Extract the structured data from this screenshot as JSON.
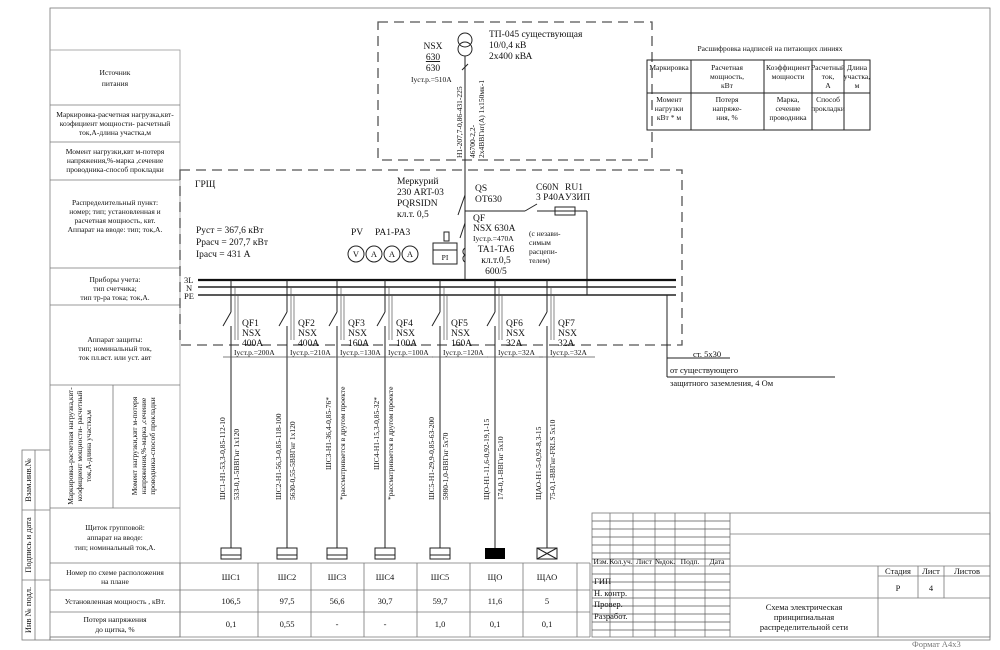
{
  "left_table": {
    "source": [
      "Источник",
      "питания"
    ],
    "marking": [
      "Маркировка-расчетная нагрузка,квт-",
      "коэфициент мощности- расчетный",
      "ток,А-длина участка,м"
    ],
    "moment": [
      "Момент нагрузки,квт м-потеря",
      "напряжения,%-марка ,сечение",
      "проводника-способ прокладки"
    ],
    "dist_point": [
      "Распределительный пункт:",
      "номер; тип; установленная и",
      "расчетная мощность, квт.",
      "Аппарат на вводе: тип; ток,А."
    ],
    "meters": [
      "Приборы учета:",
      "тип счетчика;",
      "тип тр-ра тока; ток,А."
    ],
    "protection": [
      "Аппарат защиты:",
      "тип; номинальный ток,",
      "ток пл.вст. или уст. авт"
    ],
    "marking_v": [
      "Маркировка-расчетная нагрузка,квт-",
      "коэфициент мощности- расчетный",
      "ток,А-длина участка,м"
    ],
    "moment_v": [
      "Момент нагрузки,квт м-потеря",
      "напряжения,%-марка ,сечение",
      "проводника-способ прокладки"
    ],
    "group_panel": [
      "Щиток групповой:",
      "аппарат на вводе:",
      "тип; номинальный ток,А."
    ],
    "plan_number": [
      "Номер по схеме расположения",
      "на плане"
    ],
    "installed_power": "Установленная мощность , кВт.",
    "voltage_loss": [
      "Потеря напряжения",
      "до щитка, %"
    ]
  },
  "stamps": [
    "Инв № подл.",
    "Подпись и дата",
    "Взам.инв.№"
  ],
  "transformer": {
    "name": "ТП-045 существующая",
    "voltage": "10/0,4 кВ",
    "power": "2х400 кВА",
    "breaker": [
      "NSX",
      "630",
      "630",
      "Iуст.р.=510А"
    ],
    "cable": [
      "Н1-207,7-0,86-431-225",
      "46700-2,2-",
      "2х4ВВГнг(А) 1х150мк-1"
    ]
  },
  "legend": {
    "title": "Расшифровка надписей на питающих линиях",
    "row1": [
      [
        "Маркировка"
      ],
      [
        "Расчетная",
        "мощность,",
        "кВт"
      ],
      [
        "Коэффициент",
        "мощности"
      ],
      [
        "Расчетный",
        "ток,",
        "А"
      ],
      [
        "Длина",
        "участка,",
        "м"
      ]
    ],
    "row2": [
      [
        "Момент",
        "нагрузки",
        "кВт * м"
      ],
      [
        "Потеря",
        "напряже-",
        "ния,   %"
      ],
      [
        "Марка,",
        "сечение",
        "проводника"
      ],
      [
        "Способ",
        "прокладки"
      ],
      []
    ]
  },
  "panel": {
    "name": "ГРЩ",
    "p_inst": "Руст = 367,6 кВт",
    "p_calc": "Ррасч = 207,7 кВт",
    "i_calc": "Ірасч = 431 А",
    "meter": [
      "Меркурий",
      "230 ART-03",
      "PQRSIDN",
      "кл.т. 0,5"
    ],
    "pv": "PV",
    "pa": "PA1-PA3",
    "instruments": [
      "V",
      "A",
      "A",
      "A"
    ],
    "pi": "PI",
    "qs": [
      "QS",
      "OT630"
    ],
    "qf": [
      "QF",
      "NSX 630A",
      "Iуст.р.=470А"
    ],
    "ta": [
      "TA1-TA6",
      "кл.т.0,5",
      "600/5"
    ],
    "note": [
      "(с незави-",
      "симым",
      "расцепи-",
      "телем)"
    ],
    "c60": [
      "C60N",
      "3 P40A"
    ],
    "ru": [
      "RU1",
      "УЗИП"
    ],
    "bus_labels": [
      "3L",
      "N",
      "PE"
    ]
  },
  "grounding": [
    "ст. 5х30",
    "от существующего",
    "защитного заземления, 4 Ом"
  ],
  "feeders": [
    {
      "qf": "QF1",
      "type": "NSX",
      "rating": "400А",
      "setting": "Iуст.р.=200А",
      "line1": "ШС1-Н1-53,3-0,85-112-10",
      "line2": "533-0,1-5ВВГнг 1х120",
      "panel": "ШС1",
      "power": "106,5",
      "loss": "0,1",
      "symbol": "panel"
    },
    {
      "qf": "QF2",
      "type": "NSX",
      "rating": "400А",
      "setting": "Iуст.р.=210А",
      "line1": "ШС2-Н1-56,3-0,85-118-100",
      "line2": "5630-0,55-5ВВГнг 1х120",
      "panel": "ШС2",
      "power": "97,5",
      "loss": "0,55",
      "symbol": "panel"
    },
    {
      "qf": "QF3",
      "type": "NSX",
      "rating": "160А",
      "setting": "Iуст.р.=130А",
      "line1": "ШС3-Н1-36,4-0,85-76*",
      "line2": "*рассматривается в другом проекте",
      "panel": "ШС3",
      "power": "56,6",
      "loss": "-",
      "symbol": "panel"
    },
    {
      "qf": "QF4",
      "type": "NSX",
      "rating": "100А",
      "setting": "Iуст.р.=100А",
      "line1": "ШС4-Н1-15,3-0,85-32*",
      "line2": "*рассматривается в другом проекте",
      "panel": "ШС4",
      "power": "30,7",
      "loss": "-",
      "symbol": "panel"
    },
    {
      "qf": "QF5",
      "type": "NSX",
      "rating": "160А",
      "setting": "Iуст.р.=120А",
      "line1": "ШС5-Н1-29,9-0,85-63-200",
      "line2": "5980-1,0-ВВГнг 5х70",
      "panel": "ШС5",
      "power": "59,7",
      "loss": "1,0",
      "symbol": "panel"
    },
    {
      "qf": "QF6",
      "type": "NSX",
      "rating": "32А",
      "setting": "Iуст.р.=32А",
      "line1": "ЩО-Н1-11,6-0,92-19,1-15",
      "line2": "174-0,1-ВВГнг 5х10",
      "panel": "ЩО",
      "power": "11,6",
      "loss": "0,1",
      "symbol": "lighting"
    },
    {
      "qf": "QF7",
      "type": "NSX",
      "rating": "32А",
      "setting": "Iуст.р.=32А",
      "line1": "ЩАО-Н1-5-0,92-8,3-15",
      "line2": "75-0,1-ВВГнг-FRLS 5х10",
      "panel": "ЩАО",
      "power": "5",
      "loss": "0,1",
      "symbol": "emergency"
    }
  ],
  "title_block": {
    "headers": [
      "Изм.",
      "Кол.уч.",
      "Лист",
      "№док.",
      "Подп.",
      "Дата"
    ],
    "roles": [
      "ГИП",
      "Н. контр.",
      "Провер.",
      "Разработ."
    ],
    "stage_label": "Стадия",
    "sheet_label": "Лист",
    "sheets_label": "Листов",
    "stage": "Р",
    "sheet": "4",
    "title": [
      "Схема электрическая",
      "принципиальная",
      "распределительной сети"
    ],
    "format": "Формат А4х3"
  }
}
